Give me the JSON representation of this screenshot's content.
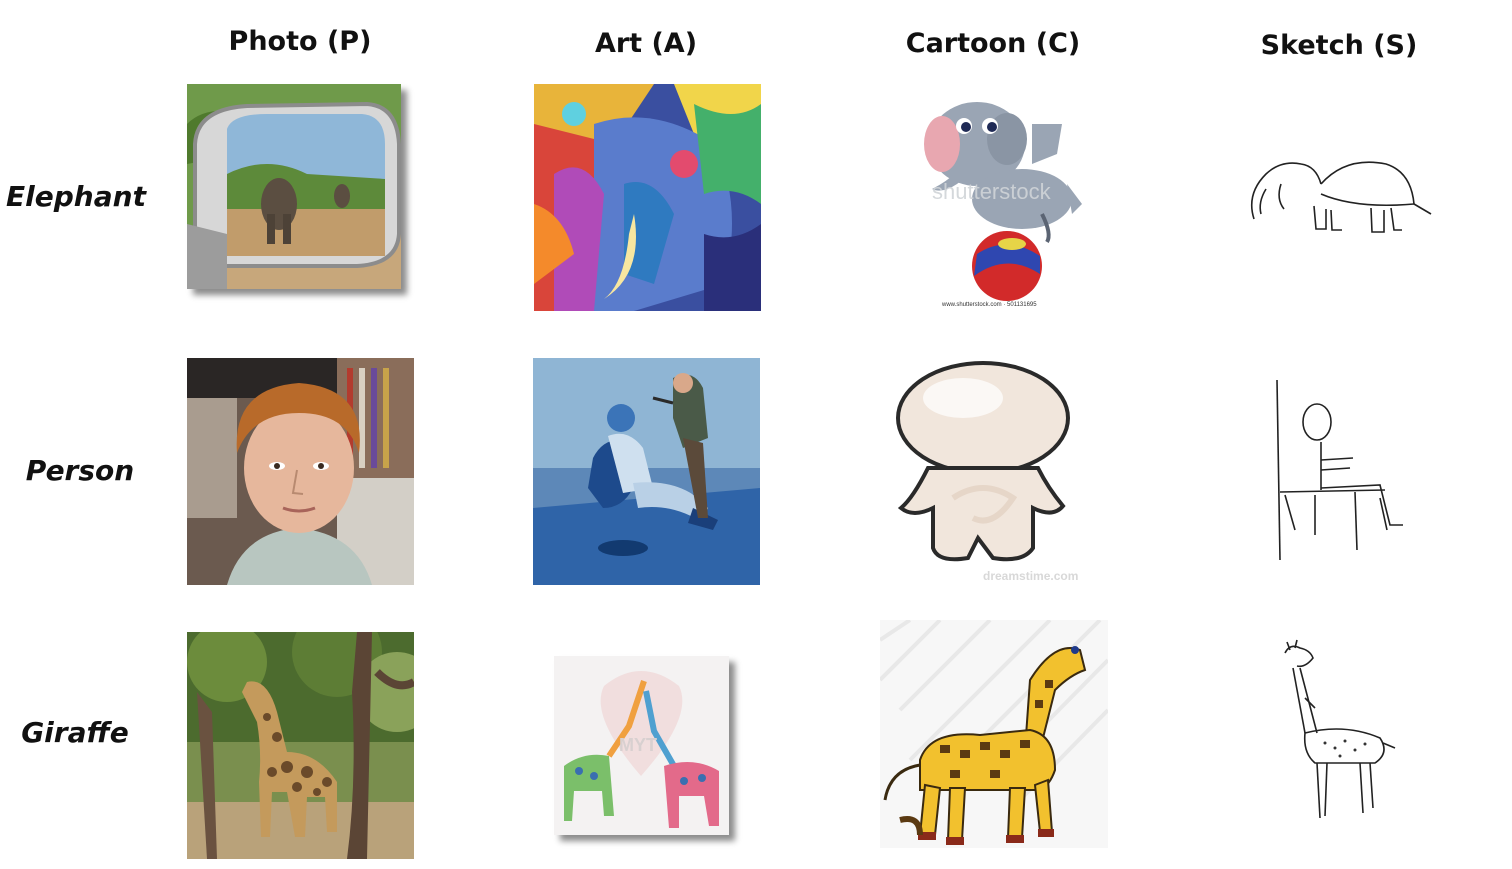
{
  "columns": [
    {
      "label": "Photo (P)"
    },
    {
      "label": "Art (A)"
    },
    {
      "label": "Cartoon (C)"
    },
    {
      "label": "Sketch (S)"
    }
  ],
  "rows": [
    {
      "label": "Elephant"
    },
    {
      "label": "Person"
    },
    {
      "label": "Giraffe"
    }
  ],
  "watermarks": {
    "shutterstock": "shutterstock",
    "shutterstock_url": "www.shutterstock.com · 501131695",
    "dreamstime": "dreamstime.com",
    "art_text": "MYT"
  }
}
